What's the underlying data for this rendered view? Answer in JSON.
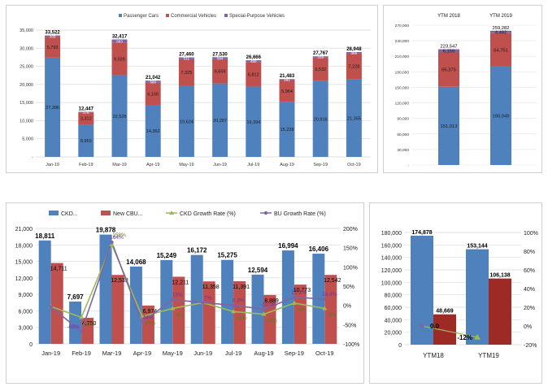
{
  "colors": {
    "passenger": "#4f81bd",
    "commercial": "#c0504d",
    "special": "#8064a2",
    "ckd": "#4f81bd",
    "cbu": "#c0504d",
    "ckd_growth": "#9bbb59",
    "bu_growth": "#8064a2",
    "ytm_bar1": "#4f81bd",
    "ytm_bar2": "#9e2a26",
    "ytm_line": "#9bbb59"
  },
  "chart_data": [
    {
      "id": "monthly_vehicle_sales",
      "type": "bar",
      "stacked": true,
      "categories": [
        "Jan-19",
        "Feb-19",
        "Mar-19",
        "Apr-19",
        "May-19",
        "Jun-19",
        "Jul-19",
        "Aug-19",
        "Sep-19",
        "Oct-19"
      ],
      "series": [
        {
          "name": "Passenger Cars",
          "values": [
            27396,
            8959,
            22528,
            14362,
            19624,
            20287,
            19394,
            15228,
            20916,
            21355
          ]
        },
        {
          "name": "Commercial Vehicles",
          "values": [
            5793,
            3312,
            9026,
            6100,
            7325,
            6659,
            6812,
            5964,
            6532,
            7228
          ]
        },
        {
          "name": "Special-Purpose Vehicles",
          "values": [
            333,
            176,
            863,
            580,
            511,
            584,
            460,
            291,
            319,
            365
          ]
        }
      ],
      "totals": [
        33522,
        12447,
        32417,
        21042,
        27460,
        27530,
        26666,
        21483,
        27767,
        28948
      ],
      "total_labels": [
        "33,522",
        "12,447",
        "32,417",
        "21,042",
        "27,460",
        "27,530",
        "26,666",
        "21,483",
        "27,767",
        "28,948"
      ],
      "value_labels": [
        [
          "27,396",
          "8,959",
          "22,528",
          "14,362",
          "19,624",
          "20,287",
          "19,394",
          "15,228",
          "20,916",
          "21,355"
        ],
        [
          "5,793",
          "3,312",
          "9,026",
          "6,100",
          "7,325",
          "6,659",
          "6,812",
          "5,964",
          "6,532",
          "7,228"
        ],
        [
          "333",
          "176",
          "863",
          "580",
          "511",
          "584",
          "460",
          "291",
          "319",
          "365"
        ]
      ],
      "legend": [
        "Passenger Cars",
        "Commercial Vehicles",
        "Special-Purpose Vehicles"
      ],
      "legend_position": "top",
      "ylim": [
        0,
        35000
      ],
      "yticks": [
        0,
        5000,
        10000,
        15000,
        20000,
        25000,
        30000,
        35000
      ],
      "ytick_labels": [
        "-",
        "5,000",
        "10,000",
        "15,000",
        "20,000",
        "25,000",
        "30,000",
        "35,000"
      ],
      "title": "",
      "xlabel": "",
      "ylabel": ""
    },
    {
      "id": "ytm_vehicle_sales",
      "type": "bar",
      "stacked": true,
      "categories": [
        "YTM 2018",
        "YTM 2019"
      ],
      "series": [
        {
          "name": "Passenger Cars",
          "values": [
            151013,
            190049
          ]
        },
        {
          "name": "Commercial Vehicles",
          "values": [
            66375,
            64751
          ]
        },
        {
          "name": "Special-Purpose Vehicles",
          "values": [
            6159,
            4482
          ]
        }
      ],
      "totals": [
        223547,
        259282
      ],
      "total_labels": [
        "223,547",
        "259,282"
      ],
      "value_labels": [
        [
          "151,013",
          "190,049"
        ],
        [
          "66,375",
          "64,751"
        ],
        [
          "6,159",
          "4,482"
        ]
      ],
      "ylim": [
        0,
        270000
      ],
      "yticks": [
        0,
        30000,
        60000,
        90000,
        120000,
        150000,
        180000,
        210000,
        240000,
        270000
      ],
      "ytick_labels": [
        "-",
        "30,000",
        "60,000",
        "90,000",
        "120,000",
        "150,000",
        "180,000",
        "210,000",
        "240,000",
        "270,000"
      ],
      "category_labels_position": "top",
      "title": "",
      "xlabel": "",
      "ylabel": ""
    },
    {
      "id": "ckd_cbu_monthly",
      "type": "bar",
      "categories": [
        "Jan-19",
        "Feb-19",
        "Mar-19",
        "Apr-19",
        "May-19",
        "Jun-19",
        "Jul-19",
        "Aug-19",
        "Sep-19",
        "Oct-19"
      ],
      "series": [
        {
          "name": "CKD...",
          "kind": "bar",
          "values": [
            18811,
            7697,
            19878,
            14068,
            15249,
            16172,
            15275,
            12594,
            16994,
            16406
          ],
          "labels": [
            "18,811",
            "7,697",
            "19,878",
            "14,068",
            "15,249",
            "16,172",
            "15,275",
            "12,594",
            "16,994",
            "16,406"
          ]
        },
        {
          "name": "New CBU...",
          "kind": "bar",
          "values": [
            14711,
            4750,
            12539,
            6974,
            12211,
            11358,
            11391,
            8889,
            10773,
            12542
          ],
          "labels": [
            "14,711",
            "4,750",
            "12,539",
            "6,974",
            "12,211",
            "11,358",
            "11,391",
            "8,889",
            "10,773",
            "12,542"
          ]
        },
        {
          "name": "CKD Growth Rate (%)",
          "kind": "line",
          "axis": "right",
          "values": [
            -3,
            -31,
            158,
            -29,
            -8,
            7,
            -16,
            -23,
            6,
            -8
          ],
          "labels": [
            "",
            "-31%",
            "158%",
            "-29%",
            "-8%",
            "",
            "-16%",
            "-23%",
            "6%",
            "-8%"
          ]
        },
        {
          "name": "BU Growth Rate (%)",
          "kind": "line",
          "axis": "right",
          "values": [
            -4,
            -68,
            164,
            -44,
            15,
            7,
            0.3,
            -10,
            21.2,
            16.4
          ],
          "labels": [
            "",
            "-68%",
            "164%",
            "-44%",
            "15%",
            "7%",
            "0.3%",
            "-10.0%",
            "21.2%",
            "16.4%"
          ]
        }
      ],
      "legend": [
        "CKD...",
        "New CBU...",
        "CKD Growth Rate (%)",
        "BU Growth Rate (%)"
      ],
      "legend_position": "top",
      "ylim": [
        0,
        21000
      ],
      "yticks": [
        0,
        3000,
        6000,
        9000,
        12000,
        15000,
        18000,
        21000
      ],
      "ytick_labels": [
        "0",
        "3,000",
        "6,000",
        "9,000",
        "12,000",
        "15,000",
        "18,000",
        "21,000"
      ],
      "y2lim": [
        -100,
        200
      ],
      "y2ticks": [
        -100,
        -50,
        0,
        50,
        100,
        150,
        200
      ],
      "y2tick_labels": [
        "-100%",
        "-50%",
        "0%",
        "50%",
        "100%",
        "150%",
        "200%"
      ],
      "title": "",
      "xlabel": "",
      "ylabel": ""
    },
    {
      "id": "ytm_ckd_cbu",
      "type": "bar",
      "categories": [
        "YTM18",
        "YTM19"
      ],
      "series": [
        {
          "name": "CKD",
          "kind": "bar",
          "values": [
            174878,
            153144
          ],
          "labels": [
            "174,878",
            "153,144"
          ]
        },
        {
          "name": "CBU",
          "kind": "bar",
          "values": [
            48669,
            106138
          ],
          "labels": [
            "48,669",
            "106,138"
          ]
        },
        {
          "name": "Growth",
          "kind": "line",
          "axis": "right",
          "values": [
            0,
            -12
          ],
          "labels": [
            "0.0",
            "-12%"
          ]
        }
      ],
      "ylim": [
        0,
        180000
      ],
      "yticks": [
        0,
        20000,
        40000,
        60000,
        80000,
        100000,
        120000,
        140000,
        160000,
        180000
      ],
      "ytick_labels": [
        "0",
        "20,000",
        "40,000",
        "60,000",
        "80,000",
        "100,000",
        "120,000",
        "140,000",
        "160,000",
        "180,000"
      ],
      "y2lim": [
        -20,
        100
      ],
      "y2ticks": [
        -20,
        0,
        20,
        40,
        60,
        80,
        100
      ],
      "y2tick_labels": [
        "-20%",
        "0%",
        "20%",
        "40%",
        "60%",
        "80%",
        "100%"
      ],
      "title": "",
      "xlabel": "",
      "ylabel": ""
    }
  ]
}
